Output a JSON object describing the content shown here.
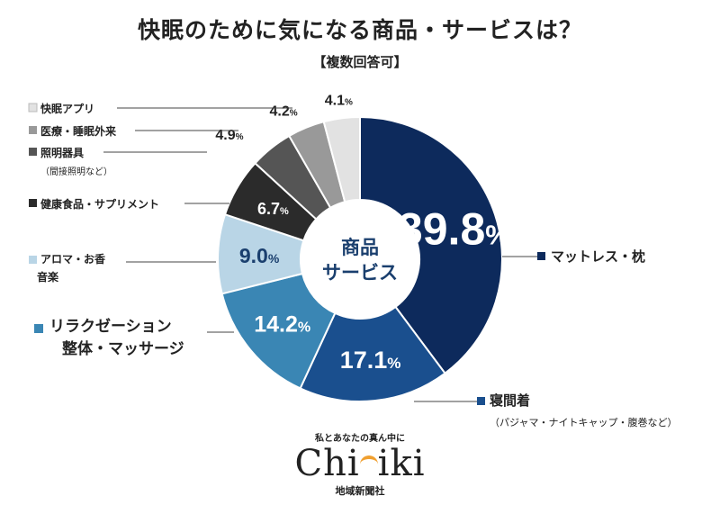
{
  "title": "快眠のために気になる商品・サービスは？",
  "subtitle": "【複数回答可】",
  "center_label": [
    "商品",
    "サービス"
  ],
  "chart_data": {
    "type": "pie",
    "title": "快眠のために気になる商品・サービスは？",
    "subtitle": "【複数回答可】",
    "unit": "%",
    "slices": [
      {
        "label": "マットレス・枕",
        "note": "",
        "value": 39.8,
        "color": "#0d2a5c"
      },
      {
        "label": "寝間着",
        "note": "（パジャマ・ナイトキャップ・腹巻など）",
        "value": 17.1,
        "color": "#1a4f8e"
      },
      {
        "label": "リラクゼーション整体・マッサージ",
        "note": "",
        "value": 14.2,
        "color": "#3a86b4"
      },
      {
        "label": "アロマ・お香音楽",
        "note": "",
        "value": 9.0,
        "color": "#b9d5e6"
      },
      {
        "label": "健康食品・サプリメント",
        "note": "",
        "value": 6.7,
        "color": "#2b2b2b"
      },
      {
        "label": "照明器具",
        "note": "（間接照明など）",
        "value": 4.9,
        "color": "#555555"
      },
      {
        "label": "医療・睡眠外来",
        "note": "",
        "value": 4.2,
        "color": "#999999"
      },
      {
        "label": "快眠アプリ",
        "note": "",
        "value": 4.1,
        "color": "#e2e2e2"
      }
    ]
  },
  "logo": {
    "tagline": "私とあなたの真ん中に",
    "name_left": "Ch",
    "name_mid": "i",
    "name_right": "iki",
    "sub": "地域新聞社"
  }
}
